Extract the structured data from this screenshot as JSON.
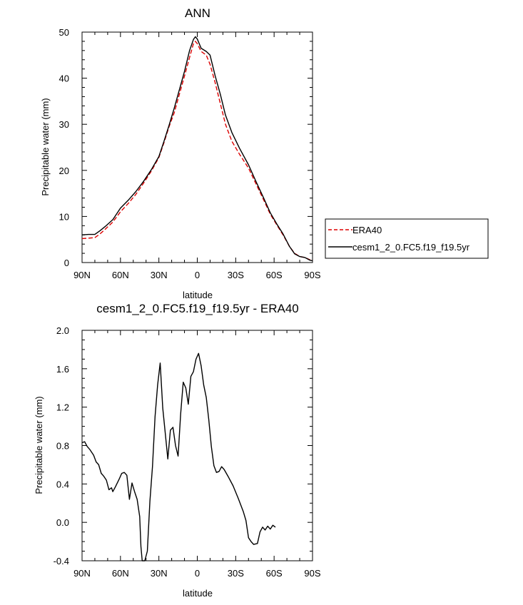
{
  "chart_data": [
    {
      "type": "line",
      "title": "ANN",
      "xlabel": "latitude",
      "ylabel": "Precipitable water (mm)",
      "xlim": [
        90,
        -90
      ],
      "ylim": [
        0,
        50
      ],
      "xtick_values": [
        90,
        60,
        30,
        0,
        -30,
        -60,
        -90
      ],
      "xtick_labels": [
        "90N",
        "60N",
        "30N",
        "0",
        "30S",
        "60S",
        "90S"
      ],
      "ytick_values": [
        0,
        10,
        20,
        30,
        40,
        50
      ],
      "ytick_labels": [
        "0",
        "10",
        "20",
        "30",
        "40",
        "50"
      ],
      "grid": false,
      "legend_placement": "right, outside plot",
      "series": [
        {
          "name": "ERA40",
          "color": "#dd0000",
          "dash": "dashed",
          "points": [
            [
              90,
              5.2
            ],
            [
              85,
              5.3
            ],
            [
              80,
              5.4
            ],
            [
              76,
              6.2
            ],
            [
              72,
              7.2
            ],
            [
              66,
              8.8
            ],
            [
              60,
              11
            ],
            [
              54,
              12.8
            ],
            [
              48,
              14.8
            ],
            [
              42,
              17.2
            ],
            [
              36,
              19.8
            ],
            [
              30,
              22.8
            ],
            [
              26,
              26
            ],
            [
              22,
              29.5
            ],
            [
              18,
              32.5
            ],
            [
              14,
              36.5
            ],
            [
              10,
              40.5
            ],
            [
              6,
              44.5
            ],
            [
              3,
              47.5
            ],
            [
              1.5,
              48
            ],
            [
              0,
              47.5
            ],
            [
              -3,
              45.8
            ],
            [
              -7,
              45
            ],
            [
              -10,
              43
            ],
            [
              -14,
              39
            ],
            [
              -18,
              34.5
            ],
            [
              -22,
              30
            ],
            [
              -27,
              26.3
            ],
            [
              -33,
              23.5
            ],
            [
              -40,
              20.5
            ],
            [
              -46,
              17
            ],
            [
              -52,
              13.5
            ],
            [
              -57,
              10.5
            ],
            [
              -62,
              8.2
            ],
            [
              -67,
              6
            ],
            [
              -72,
              3.5
            ],
            [
              -76,
              2
            ],
            [
              -80,
              1.3
            ],
            [
              -84,
              1.1
            ],
            [
              -88,
              0.6
            ],
            [
              -90,
              0.4
            ]
          ]
        },
        {
          "name": "cesm1_2_0.FC5.f19_f19.5yr",
          "color": "#000000",
          "dash": "solid",
          "points": [
            [
              90,
              6
            ],
            [
              85,
              6.1
            ],
            [
              80,
              6.1
            ],
            [
              76,
              6.9
            ],
            [
              72,
              7.8
            ],
            [
              66,
              9.3
            ],
            [
              60,
              11.8
            ],
            [
              54,
              13.5
            ],
            [
              48,
              15.4
            ],
            [
              42,
              17.6
            ],
            [
              36,
              20.1
            ],
            [
              30,
              23
            ],
            [
              26,
              26.3
            ],
            [
              22,
              29.8
            ],
            [
              18,
              33.5
            ],
            [
              14,
              37.5
            ],
            [
              10,
              41.5
            ],
            [
              6,
              46
            ],
            [
              3,
              48.4
            ],
            [
              1.5,
              49
            ],
            [
              0,
              48.5
            ],
            [
              -3,
              46.5
            ],
            [
              -7,
              45.8
            ],
            [
              -10,
              45
            ],
            [
              -14,
              40.5
            ],
            [
              -18,
              36.5
            ],
            [
              -22,
              32
            ],
            [
              -27,
              28.2
            ],
            [
              -33,
              24.8
            ],
            [
              -40,
              21.2
            ],
            [
              -46,
              17.5
            ],
            [
              -52,
              13.9
            ],
            [
              -57,
              10.8
            ],
            [
              -62,
              8.4
            ],
            [
              -67,
              6.2
            ],
            [
              -72,
              3.5
            ],
            [
              -76,
              1.9
            ],
            [
              -80,
              1.3
            ],
            [
              -84,
              1.1
            ],
            [
              -88,
              0.5
            ],
            [
              -90,
              0.4
            ]
          ]
        }
      ],
      "legend": [
        "ERA40",
        "cesm1_2_0.FC5.f19_f19.5yr"
      ]
    },
    {
      "type": "line",
      "title": "cesm1_2_0.FC5.f19_f19.5yr - ERA40",
      "xlabel": "latitude",
      "ylabel": "Precipitable water (mm)",
      "xlim": [
        90,
        -90
      ],
      "ylim": [
        -0.4,
        2.0
      ],
      "xtick_values": [
        90,
        60,
        30,
        0,
        -30,
        -60,
        -90
      ],
      "xtick_labels": [
        "90N",
        "60N",
        "30N",
        "0",
        "30S",
        "60S",
        "90S"
      ],
      "ytick_values": [
        -0.4,
        0,
        0.4,
        0.8,
        1.2,
        1.6,
        2.0
      ],
      "ytick_labels": [
        "-0.4",
        "0.0",
        "0.4",
        "0.8",
        "1.2",
        "1.6",
        "2.0"
      ],
      "grid": false,
      "series": [
        {
          "color": "#000000",
          "dash": "solid",
          "points": [
            [
              90,
              0.83
            ],
            [
              88,
              0.84
            ],
            [
              86,
              0.79
            ],
            [
              84,
              0.76
            ],
            [
              81,
              0.7
            ],
            [
              79,
              0.63
            ],
            [
              77,
              0.6
            ],
            [
              75,
              0.51
            ],
            [
              73,
              0.48
            ],
            [
              71,
              0.44
            ],
            [
              69,
              0.34
            ],
            [
              67,
              0.36
            ],
            [
              66,
              0.32
            ],
            [
              64,
              0.37
            ],
            [
              61,
              0.45
            ],
            [
              59,
              0.51
            ],
            [
              57,
              0.52
            ],
            [
              55,
              0.49
            ],
            [
              53,
              0.24
            ],
            [
              51,
              0.41
            ],
            [
              49,
              0.32
            ],
            [
              47,
              0.24
            ],
            [
              45,
              0.06
            ],
            [
              44,
              -0.25
            ],
            [
              43,
              -0.4
            ],
            [
              41,
              -0.4
            ],
            [
              39,
              -0.3
            ],
            [
              37,
              0.22
            ],
            [
              35,
              0.58
            ],
            [
              33,
              1.1
            ],
            [
              31,
              1.43
            ],
            [
              29,
              1.66
            ],
            [
              27,
              1.19
            ],
            [
              25,
              0.93
            ],
            [
              23,
              0.66
            ],
            [
              21,
              0.96
            ],
            [
              19,
              0.99
            ],
            [
              17,
              0.8
            ],
            [
              15,
              0.69
            ],
            [
              13,
              1.13
            ],
            [
              11,
              1.46
            ],
            [
              9,
              1.4
            ],
            [
              7,
              1.23
            ],
            [
              5,
              1.52
            ],
            [
              3,
              1.57
            ],
            [
              1,
              1.7
            ],
            [
              -1,
              1.76
            ],
            [
              -3,
              1.63
            ],
            [
              -5,
              1.43
            ],
            [
              -7,
              1.3
            ],
            [
              -9,
              1.07
            ],
            [
              -11,
              0.79
            ],
            [
              -13,
              0.59
            ],
            [
              -15,
              0.52
            ],
            [
              -17,
              0.53
            ],
            [
              -19,
              0.58
            ],
            [
              -21,
              0.55
            ],
            [
              -24,
              0.48
            ],
            [
              -28,
              0.38
            ],
            [
              -32,
              0.25
            ],
            [
              -36,
              0.11
            ],
            [
              -38,
              0.02
            ],
            [
              -40,
              -0.16
            ],
            [
              -42,
              -0.2
            ],
            [
              -44,
              -0.23
            ],
            [
              -47,
              -0.22
            ],
            [
              -49,
              -0.1
            ],
            [
              -51,
              -0.05
            ],
            [
              -53,
              -0.08
            ],
            [
              -55,
              -0.04
            ],
            [
              -57,
              -0.07
            ],
            [
              -59,
              -0.03
            ],
            [
              -61,
              -0.05
            ]
          ]
        }
      ]
    }
  ]
}
